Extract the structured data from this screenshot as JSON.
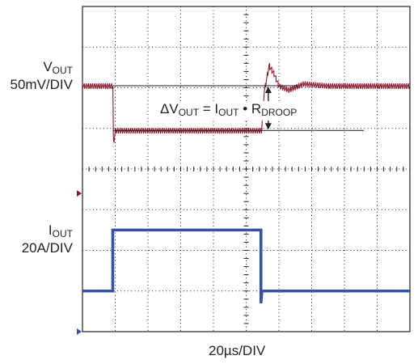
{
  "chart_data": {
    "type": "line",
    "title": "",
    "xlabel": "20µs/DIV",
    "x_units": "µs",
    "x_per_div": 20,
    "x_divisions": 10,
    "x_range": [
      0,
      200
    ],
    "y_divisions": 8,
    "grid": true,
    "channels": [
      {
        "name_main": "V",
        "name_sub": "OUT",
        "scale": "50mV/DIV",
        "color": "#8b1a2b",
        "reference_level_div": 3.4,
        "x": [
          0,
          18.6,
          18.9,
          20,
          40,
          60,
          80,
          100,
          109.4,
          111,
          114,
          117,
          120,
          126,
          135,
          150,
          175,
          200
        ],
        "y_div": [
          6.05,
          6.05,
          4.6,
          4.95,
          4.95,
          4.95,
          4.95,
          4.95,
          4.95,
          5.9,
          6.55,
          6.35,
          6.05,
          5.95,
          6.1,
          6.05,
          6.05,
          6.05
        ],
        "ripple_div": 0.15
      },
      {
        "name_main": "I",
        "name_sub": "OUT",
        "scale": "20A/DIV",
        "color": "#3453a3",
        "reference_level_div": 0,
        "x": [
          0,
          18.5,
          18.5,
          109.0,
          109.0,
          109.6,
          200
        ],
        "y_div": [
          1.0,
          1.0,
          2.5,
          2.5,
          0.7,
          1.0,
          1.0
        ]
      }
    ],
    "annotation": {
      "delta": "ΔV",
      "delta_sub": "OUT",
      "eq": " = I",
      "i_sub": "OUT",
      "bullet": " • R",
      "r_sub": "DROOP"
    }
  }
}
